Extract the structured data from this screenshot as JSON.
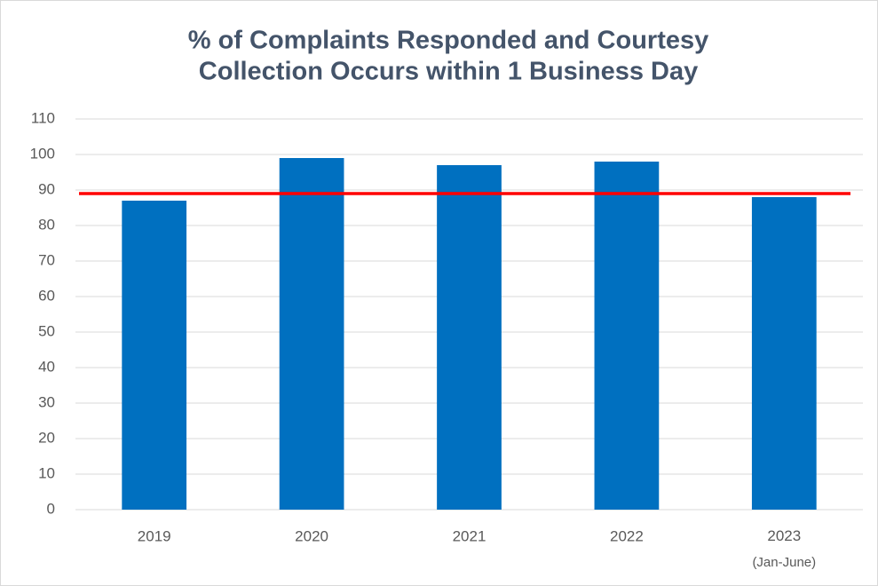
{
  "chart_data": {
    "type": "bar",
    "title": [
      "% of Complaints Responded and Courtesy",
      "Collection Occurs within 1 Business Day"
    ],
    "categories": [
      "2019",
      "2020",
      "2021",
      "2022",
      "2023\n(Jan-June)"
    ],
    "values": [
      87,
      99,
      97,
      98,
      88
    ],
    "color": "#0070c0",
    "reference_line": {
      "value": 89,
      "color": "#ff0000"
    },
    "ylim": [
      0,
      110
    ],
    "yticks": [
      0,
      10,
      20,
      30,
      40,
      50,
      60,
      70,
      80,
      90,
      100,
      110
    ],
    "grid": true
  }
}
